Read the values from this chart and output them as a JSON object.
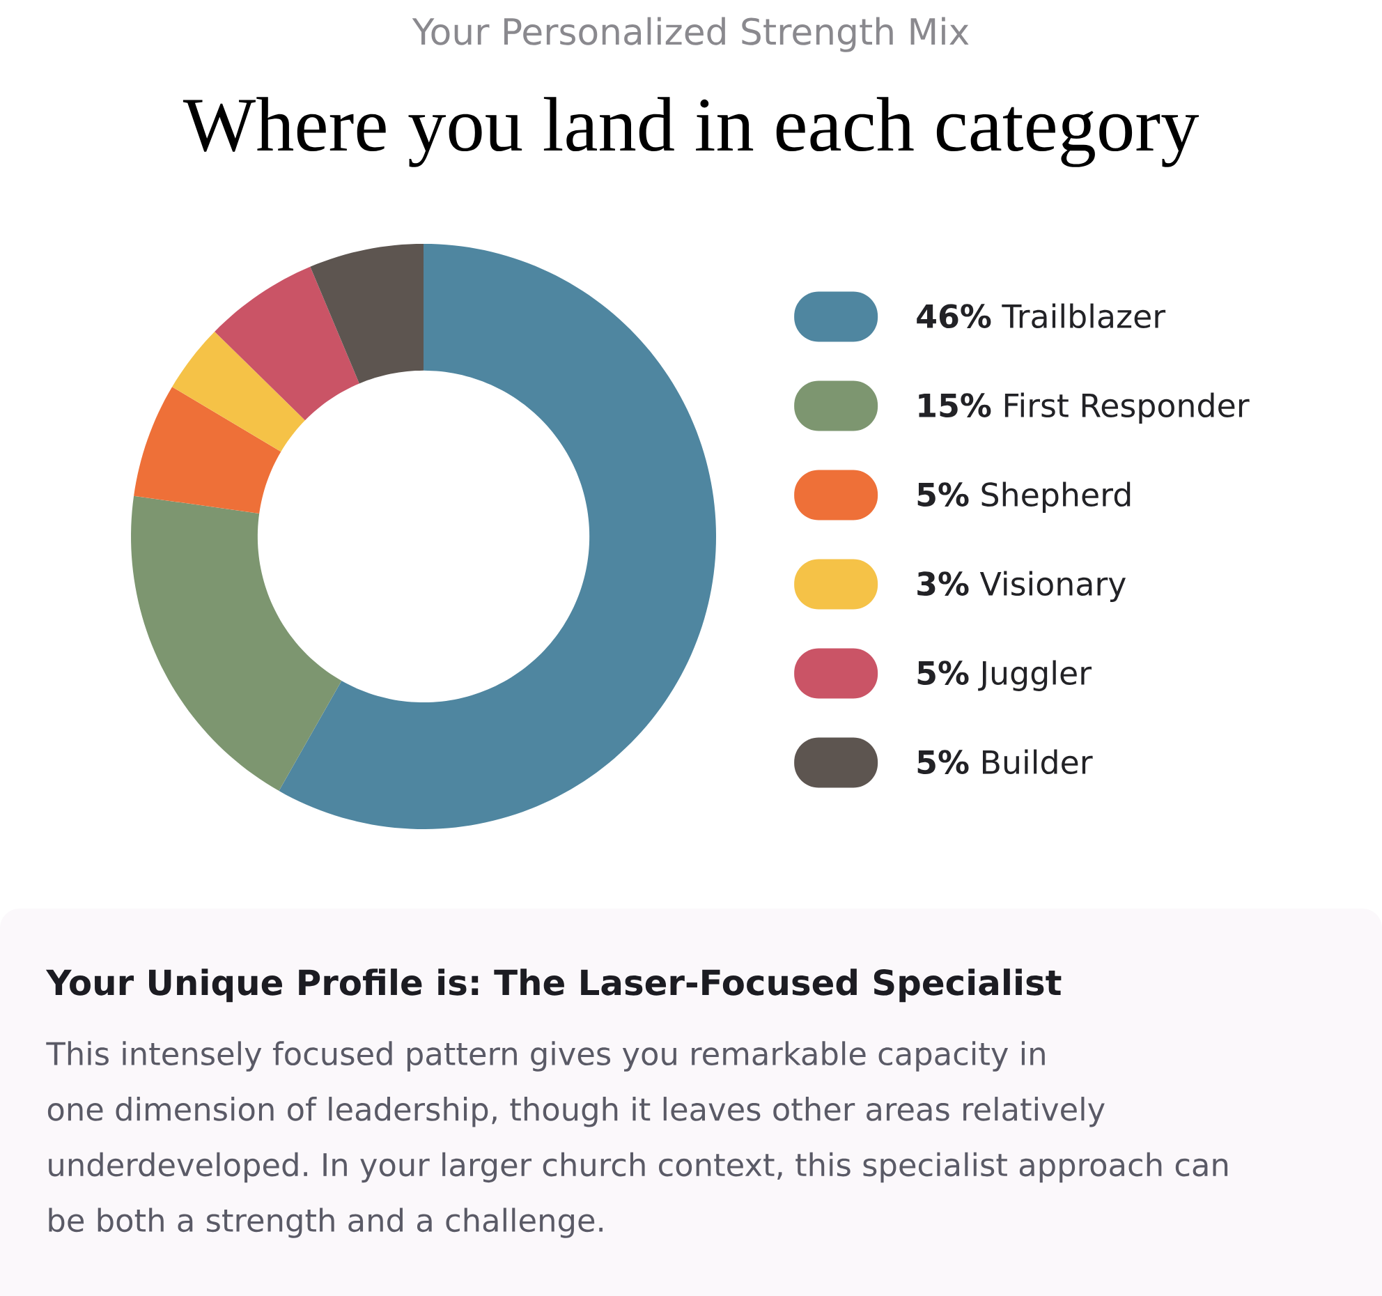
{
  "chart_data": {
    "type": "donut",
    "subtitle": "Your Personalized Strength Mix",
    "title": "Where you land in each category",
    "categories": [
      "**46%** Trailblazer",
      "**15%** First Responder",
      "**5%** Shepherd",
      "**3%** Visionary",
      "**5%** Juggler",
      "**5%** Builder"
    ],
    "values": [
      46,
      15,
      5,
      3,
      5,
      5
    ],
    "colors": [
      "#4f86a0",
      "#7d9670",
      "#ee7038",
      "#f5c247",
      "#ca5466",
      "#5d5550"
    ],
    "legend": "right",
    "annotations": [
      "Your Unique Profile is: The Laser-Focused Specialist",
      "This intensely focused pattern gives you remarkable capacity in one dimension of leadership, though it leaves other areas relatively underdeveloped. In your larger church context, this specialist approach can be both a strength and a challenge."
    ]
  }
}
